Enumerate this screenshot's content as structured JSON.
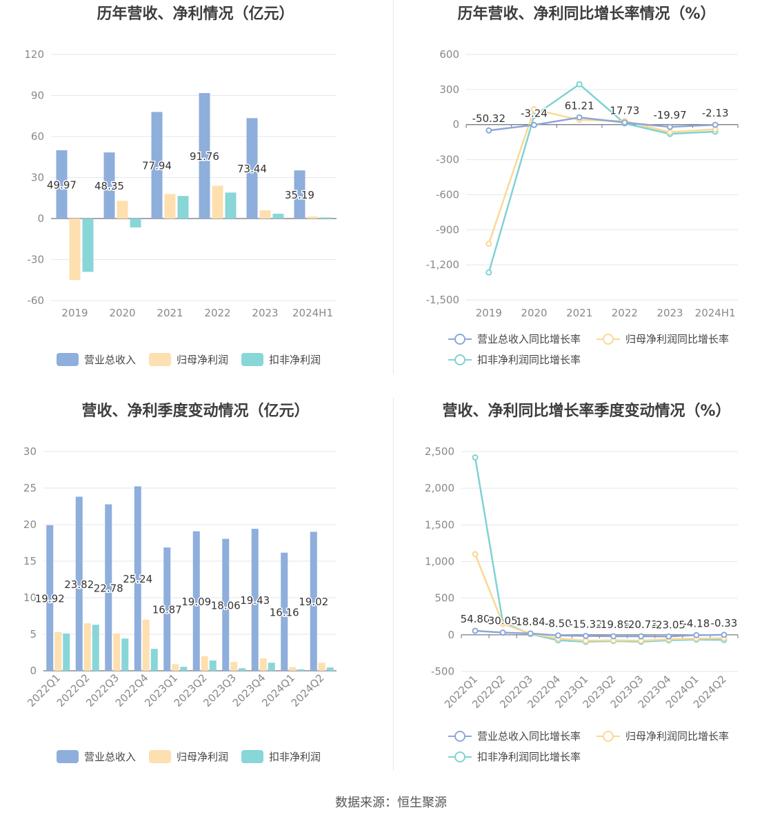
{
  "colors": {
    "revenue": "#8eaedc",
    "net_profit": "#fedfaf",
    "deducted_profit": "#88d6d7",
    "revenue_line": "#8ba7d8",
    "net_profit_line": "#fbd892",
    "deducted_profit_line": "#7fd2d3",
    "grid": "#e4e6ec",
    "axis": "#6e7079",
    "label": "#888888"
  },
  "source": "数据来源：恒生聚源",
  "legends": {
    "bar": [
      "营业总收入",
      "归母净利润",
      "扣非净利润"
    ],
    "line": [
      "营业总收入同比增长率",
      "归母净利润同比增长率",
      "扣非净利润同比增长率"
    ]
  },
  "chart_data": [
    {
      "id": "annual_amount",
      "type": "bar",
      "title": "历年营收、净利情况（亿元）",
      "categories": [
        "2019",
        "2020",
        "2021",
        "2022",
        "2023",
        "2024H1"
      ],
      "yticks": [
        -60,
        -30,
        0,
        30,
        60,
        90,
        120
      ],
      "ylim": [
        -60,
        120
      ],
      "series": [
        {
          "name": "营业总收入",
          "values": [
            49.97,
            48.35,
            77.94,
            91.76,
            73.44,
            35.19
          ],
          "labels": [
            "49.97",
            "48.35",
            "77.94",
            "91.76",
            "73.44",
            "35.19"
          ]
        },
        {
          "name": "归母净利润",
          "values": [
            -45,
            13,
            18,
            24,
            6,
            1.5
          ]
        },
        {
          "name": "扣非净利润",
          "values": [
            -39,
            -6.5,
            16.5,
            19,
            3.5,
            0.8
          ]
        }
      ],
      "grid": true,
      "legend_position": "bottom"
    },
    {
      "id": "annual_growth",
      "type": "line",
      "title": "历年营收、净利同比增长率情况（%）",
      "categories": [
        "2019",
        "2020",
        "2021",
        "2022",
        "2023",
        "2024H1"
      ],
      "yticks": [
        -1500,
        -1200,
        -900,
        -600,
        -300,
        0,
        300,
        600
      ],
      "ytick_labels": [
        "-1,500",
        "-1,200",
        "-900",
        "-600",
        "-300",
        "0",
        "300",
        "600"
      ],
      "ylim": [
        -1500,
        600
      ],
      "series": [
        {
          "name": "营业总收入同比增长率",
          "values": [
            -50.32,
            -3.24,
            61.21,
            17.73,
            -19.97,
            -2.13
          ],
          "labels": [
            "-50.32",
            "-3.24",
            "61.21",
            "17.73",
            "-19.97",
            "-2.13"
          ]
        },
        {
          "name": "归母净利润同比增长率",
          "values": [
            -1020,
            130,
            40,
            30,
            -65,
            -40
          ]
        },
        {
          "name": "扣非净利润同比增长率",
          "values": [
            -1265,
            75,
            345,
            10,
            -80,
            -60
          ]
        }
      ],
      "grid": true,
      "legend_position": "bottom"
    },
    {
      "id": "quarterly_amount",
      "type": "bar",
      "title": "营收、净利季度变动情况（亿元）",
      "categories": [
        "2022Q1",
        "2022Q2",
        "2022Q3",
        "2022Q4",
        "2023Q1",
        "2023Q2",
        "2023Q3",
        "2023Q4",
        "2024Q1",
        "2024Q2"
      ],
      "yticks": [
        0,
        5,
        10,
        15,
        20,
        25,
        30
      ],
      "ylim": [
        0,
        30
      ],
      "series": [
        {
          "name": "营业总收入",
          "values": [
            19.92,
            23.82,
            22.78,
            25.24,
            16.87,
            19.09,
            18.06,
            19.43,
            16.16,
            19.02
          ],
          "labels": [
            "19.92",
            "23.82",
            "22.78",
            "25.24",
            "16.87",
            "19.09",
            "18.06",
            "19.43",
            "16.16",
            "19.02"
          ]
        },
        {
          "name": "归母净利润",
          "values": [
            5.3,
            6.5,
            5.1,
            7.0,
            0.9,
            2.0,
            1.2,
            1.7,
            0.5,
            1.1
          ]
        },
        {
          "name": "扣非净利润",
          "values": [
            5.1,
            6.3,
            4.4,
            3.0,
            0.55,
            1.4,
            0.35,
            1.1,
            0.2,
            0.45
          ]
        }
      ],
      "grid": true,
      "legend_position": "bottom"
    },
    {
      "id": "quarterly_growth",
      "type": "line",
      "title": "营收、净利同比增长率季度变动情况（%）",
      "categories": [
        "2022Q1",
        "2022Q2",
        "2022Q3",
        "2022Q4",
        "2023Q1",
        "2023Q2",
        "2023Q3",
        "2023Q4",
        "2024Q1",
        "2024Q2"
      ],
      "yticks": [
        -500,
        0,
        500,
        1000,
        1500,
        2000,
        2500
      ],
      "ytick_labels": [
        "-500",
        "0",
        "500",
        "1,000",
        "1,500",
        "2,000",
        "2,500"
      ],
      "ylim": [
        -500,
        2500
      ],
      "series": [
        {
          "name": "营业总收入同比增长率",
          "values": [
            54.8,
            30.05,
            18.84,
            -8.5,
            -15.32,
            -19.88,
            -20.73,
            -23.05,
            -4.18,
            -0.33
          ],
          "labels": [
            "54.80",
            "30.05",
            "18.84",
            "-8.50",
            "-15.32",
            "-19.88",
            "-20.73",
            "-23.05",
            "-4.18",
            "-0.33"
          ]
        },
        {
          "name": "归母净利润同比增长率",
          "values": [
            1100,
            150,
            15,
            -50,
            -80,
            -75,
            -80,
            -60,
            -50,
            -45
          ]
        },
        {
          "name": "扣非净利润同比增长率",
          "values": [
            2420,
            170,
            10,
            -75,
            -95,
            -85,
            -95,
            -75,
            -65,
            -70
          ]
        }
      ],
      "grid": true,
      "legend_position": "bottom"
    }
  ]
}
